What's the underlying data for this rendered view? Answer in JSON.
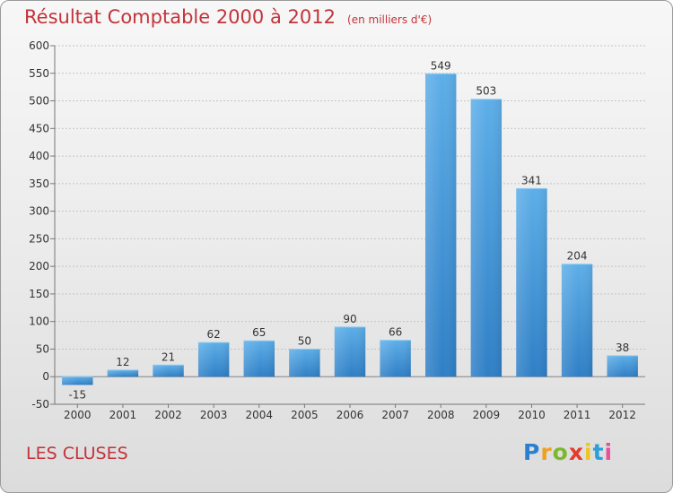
{
  "title": "Résultat Comptable 2000 à 2012",
  "subtitle": "(en milliers d'€)",
  "location": "LES CLUSES",
  "logo_text": "Proxiti",
  "colors": {
    "accent": "#c2333a",
    "bar_top": "#5daee8",
    "bar_bottom": "#2f7fc6"
  },
  "chart_data": {
    "type": "bar",
    "title": "Résultat Comptable 2000 à 2012",
    "subtitle": "(en milliers d'€)",
    "xlabel": "",
    "ylabel": "",
    "categories": [
      "2000",
      "2001",
      "2002",
      "2003",
      "2004",
      "2005",
      "2006",
      "2007",
      "2008",
      "2009",
      "2010",
      "2011",
      "2012"
    ],
    "values": [
      -15,
      12,
      21,
      62,
      65,
      50,
      90,
      66,
      549,
      503,
      341,
      204,
      38
    ],
    "ylim": [
      -50,
      600
    ],
    "yticks": [
      -50,
      0,
      50,
      100,
      150,
      200,
      250,
      300,
      350,
      400,
      450,
      500,
      550,
      600
    ],
    "grid": true,
    "legend": "none"
  }
}
